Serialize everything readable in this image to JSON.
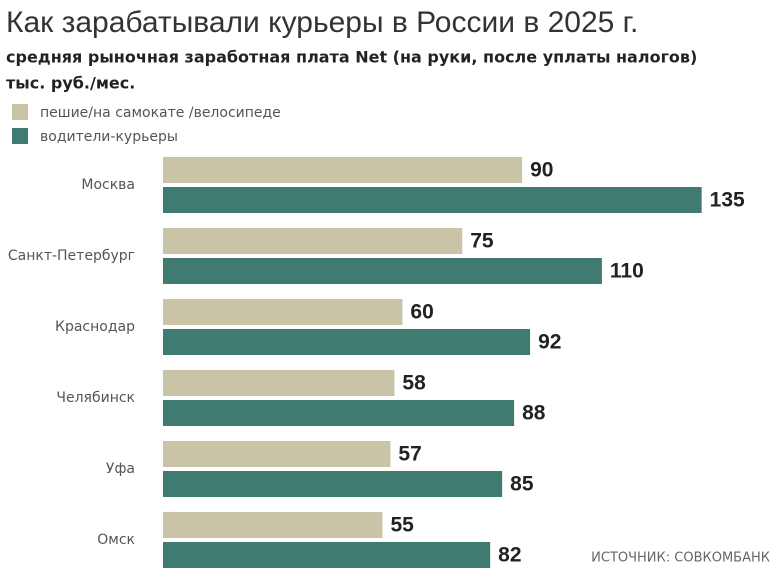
{
  "chart_data": {
    "type": "bar",
    "orientation": "horizontal",
    "title": "Как зарабатывали курьеры в России в 2025 г.",
    "subtitle": "средняя рыночная заработная плата Net (на руки, после уплаты налогов)",
    "unit": "тыс. руб./мес.",
    "categories": [
      "Москва",
      "Санкт-Петербург",
      "Краснодар",
      "Челябинск",
      "Уфа",
      "Омск"
    ],
    "series": [
      {
        "name": "пешие/на самокате /велосипеде",
        "color": "#c9c3a7",
        "values": [
          90,
          75,
          60,
          58,
          57,
          55
        ]
      },
      {
        "name": "водители-курьеры",
        "color": "#3f7b71",
        "values": [
          135,
          110,
          92,
          88,
          85,
          82
        ]
      }
    ],
    "source": "ИСТОЧНИК: СОВКОМБАНК"
  }
}
